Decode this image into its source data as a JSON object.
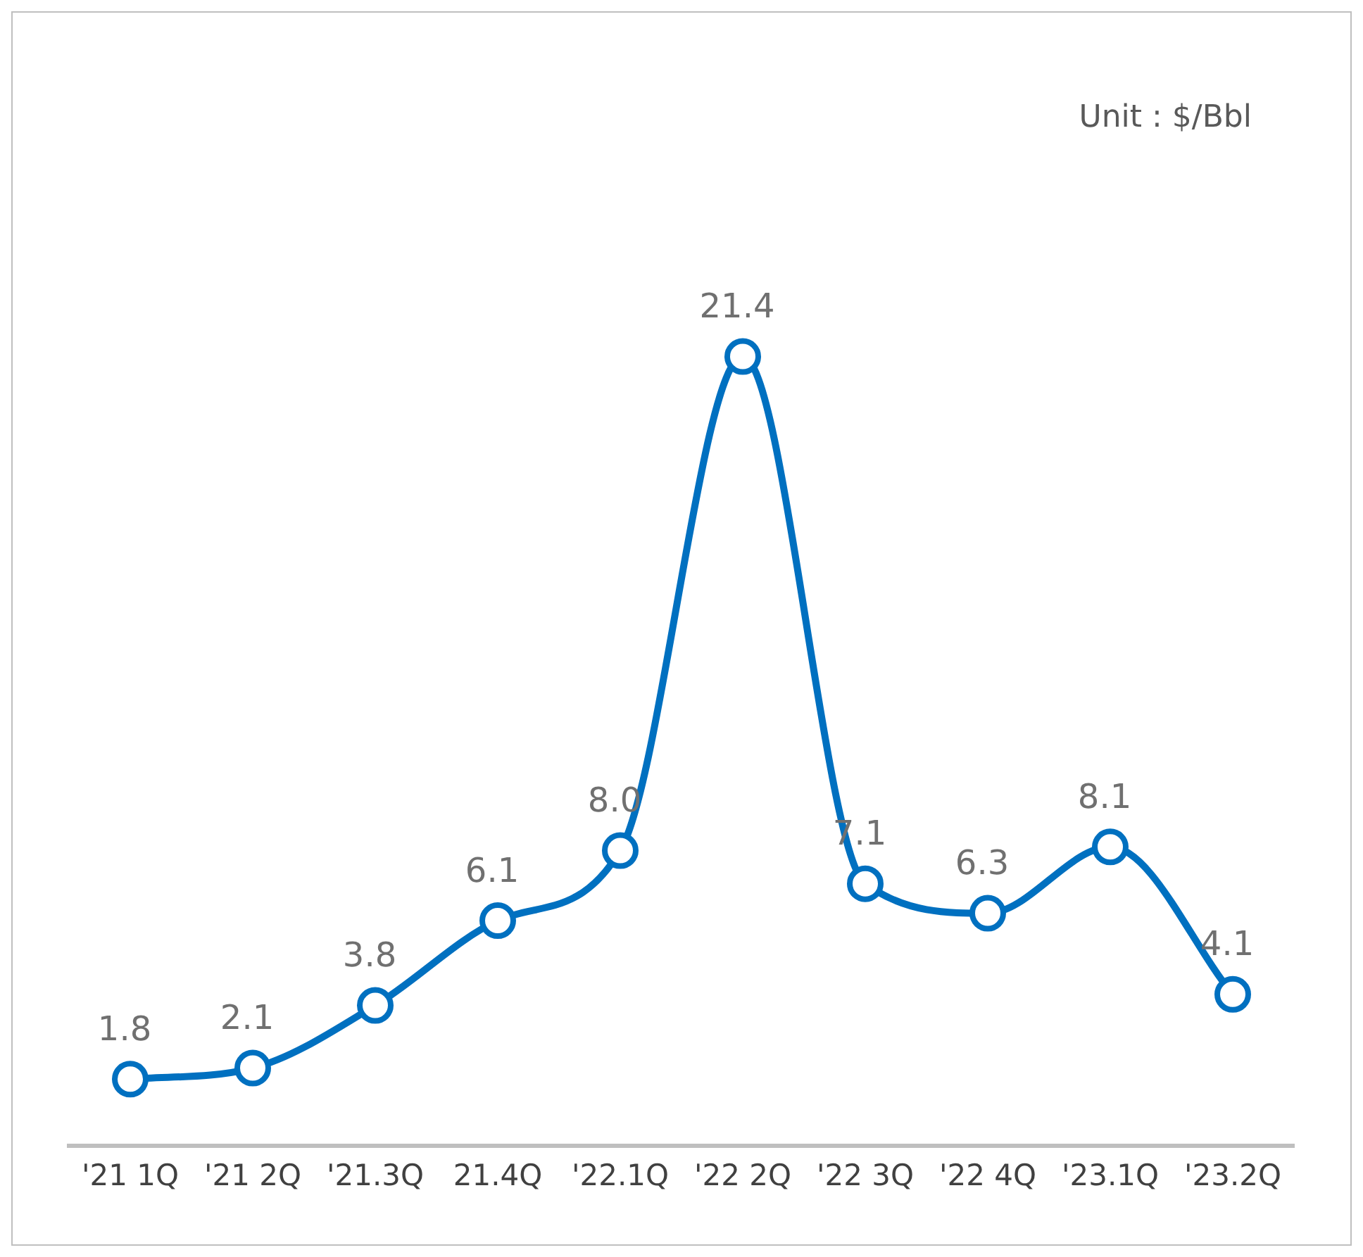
{
  "chart_data": {
    "type": "line",
    "categories": [
      "'21 1Q",
      "'21 2Q",
      "'21.3Q",
      "21.4Q",
      "'22.1Q",
      "'22 2Q",
      "'22 3Q",
      "'22 4Q",
      "'23.1Q",
      "'23.2Q"
    ],
    "values": [
      1.8,
      2.1,
      3.8,
      6.1,
      8.0,
      21.4,
      7.1,
      6.3,
      8.1,
      4.1
    ],
    "value_labels": [
      "1.8",
      "2.1",
      "3.8",
      "6.1",
      "8.0",
      "21.4",
      "7.1",
      "6.3",
      "8.1",
      "4.1"
    ],
    "color": "#0070c0",
    "marker": "circle",
    "line_style": "solid",
    "annotations": [
      "Unit : $/Bbl"
    ]
  }
}
